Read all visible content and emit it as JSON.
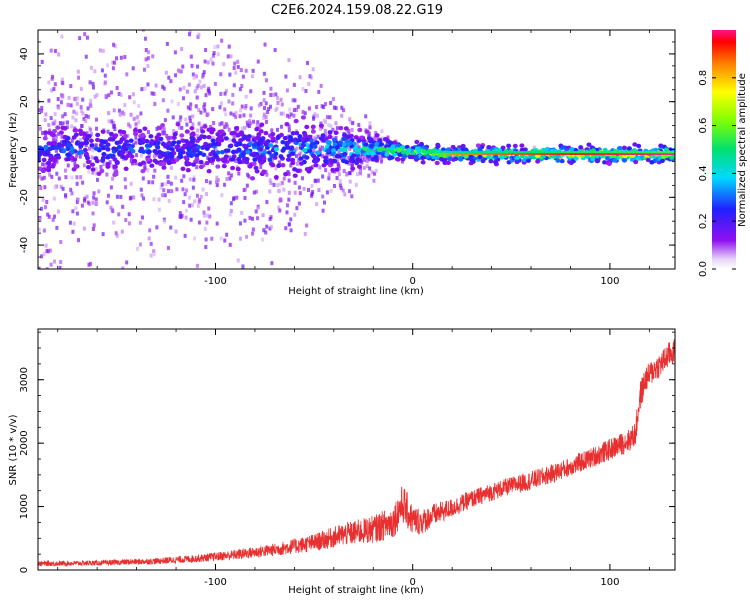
{
  "title": "C2E6.2024.159.08.22.G19",
  "chart_data": [
    {
      "type": "heatmap",
      "xlabel": "Height of straight line (km)",
      "ylabel": "Frequency (Hz)",
      "xlim": [
        -190,
        133
      ],
      "ylim": [
        -50,
        50
      ],
      "x_ticks": [
        -100,
        0,
        100
      ],
      "y_ticks": [
        -40,
        -20,
        0,
        20,
        40
      ],
      "colorbar": {
        "label": "Normalized spectral amplitude",
        "ticks": [
          "0.0",
          "0.2",
          "0.4",
          "0.6",
          "0.8"
        ],
        "tick_values": [
          0.0,
          0.2,
          0.4,
          0.6,
          0.8
        ],
        "range": [
          0,
          1
        ]
      },
      "description_points": [
        {
          "x": -190,
          "freq_center": 0,
          "spread": 50,
          "peak_amp": 0.35
        },
        {
          "x": -100,
          "freq_center": 0,
          "spread": 45,
          "peak_amp": 0.35
        },
        {
          "x": -60,
          "freq_center": 0,
          "spread": 30,
          "peak_amp": 0.45
        },
        {
          "x": -20,
          "freq_center": 0,
          "spread": 8,
          "peak_amp": 0.6
        },
        {
          "x": 0,
          "freq_center": -1,
          "spread": 3,
          "peak_amp": 0.75
        },
        {
          "x": 20,
          "freq_center": -2,
          "spread": 2,
          "peak_amp": 0.85
        },
        {
          "x": 80,
          "freq_center": -2,
          "spread": 2,
          "peak_amp": 0.95
        },
        {
          "x": 133,
          "freq_center": -2,
          "spread": 2,
          "peak_amp": 1.0
        }
      ],
      "grid": false
    },
    {
      "type": "line",
      "xlabel": "Height of straight line (km)",
      "ylabel": "SNR (10 * v/v)",
      "xlim": [
        -190,
        133
      ],
      "ylim": [
        0,
        3800
      ],
      "x_ticks": [
        -100,
        0,
        100
      ],
      "y_ticks": [
        0,
        1000,
        2000,
        3000
      ],
      "grid": false,
      "series": [
        {
          "color": "#e83030",
          "x": [
            -190,
            -160,
            -130,
            -110,
            -90,
            -70,
            -50,
            -35,
            -20,
            -10,
            -5,
            0,
            5,
            10,
            20,
            30,
            40,
            50,
            60,
            70,
            80,
            90,
            100,
            110,
            113,
            115,
            118,
            122,
            126,
            130,
            133
          ],
          "y": [
            100,
            110,
            140,
            180,
            240,
            320,
            430,
            560,
            640,
            760,
            1050,
            780,
            760,
            860,
            980,
            1120,
            1230,
            1330,
            1410,
            1510,
            1630,
            1760,
            1900,
            2050,
            2150,
            2700,
            3000,
            3150,
            3250,
            3400,
            3450
          ],
          "noise": [
            40,
            40,
            50,
            60,
            80,
            100,
            140,
            180,
            220,
            260,
            320,
            240,
            200,
            180,
            150,
            140,
            140,
            140,
            150,
            150,
            150,
            160,
            170,
            180,
            200,
            250,
            200,
            200,
            200,
            200,
            200
          ]
        }
      ]
    }
  ]
}
